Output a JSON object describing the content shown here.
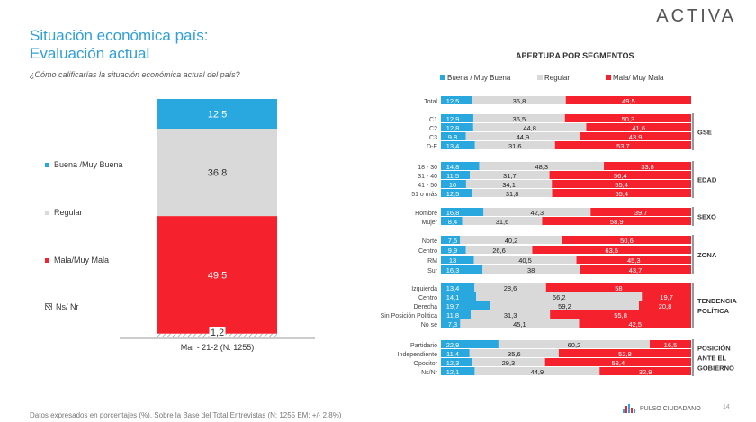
{
  "brand": "ACTIVA",
  "title": {
    "line1": "Situación económica país:",
    "line2": "Evaluación actual"
  },
  "question": "¿Cómo calificarías la situación económica actual del país?",
  "left_legend": [
    {
      "label": "Buena /Muy Buena",
      "color": "#29a8e0"
    },
    {
      "label": "Regular",
      "color": "#d9d9d9"
    },
    {
      "label": "Mala/Muy Mala",
      "color": "#f5222d"
    },
    {
      "label": "Ns/ Nr",
      "color": "hatch"
    }
  ],
  "segments_title": "APERTURA POR SEGMENTOS",
  "footnote": "Datos expresados en porcentajes (%). Sobre la Base del Total Entrevistas (N: 1255  EM: +/- 2,8%)",
  "logo_text": "PULSO CIUDADANO",
  "page_number": "14",
  "chart_data": [
    {
      "type": "bar",
      "stacked": true,
      "categories": [
        "Mar - 21-2 (N: 1255)"
      ],
      "series": [
        {
          "name": "Buena /Muy Buena",
          "values": [
            12.5
          ],
          "labels": [
            "12,5"
          ],
          "color": "#29a8e0"
        },
        {
          "name": "Regular",
          "values": [
            36.8
          ],
          "labels": [
            "36,8"
          ],
          "color": "#d9d9d9"
        },
        {
          "name": "Mala/Muy Mala",
          "values": [
            49.5
          ],
          "labels": [
            "49,5"
          ],
          "color": "#f5222d"
        },
        {
          "name": "Ns/ Nr",
          "values": [
            1.2
          ],
          "labels": [
            "1,2"
          ],
          "color": "hatch"
        }
      ],
      "ylim": [
        0,
        100
      ]
    },
    {
      "type": "bar",
      "orientation": "horizontal",
      "stacked": true,
      "title": "APERTURA POR SEGMENTOS",
      "legend_position": "top",
      "series_names": [
        "Buena / Muy Buena",
        "Regular",
        "Mala/ Muy Mala"
      ],
      "series_colors": [
        "#29a8e0",
        "#d9d9d9",
        "#f5222d"
      ],
      "groups": [
        {
          "label": [],
          "rows": [
            {
              "label": "Total",
              "values": [
                "12,5",
                "36,8",
                "49,5"
              ]
            }
          ]
        },
        {
          "label": [
            "GSE"
          ],
          "rows": [
            {
              "label": "C1",
              "values": [
                "12,9",
                "36,5",
                "50,3"
              ]
            },
            {
              "label": "C2",
              "values": [
                "12,8",
                "44,8",
                "41,6"
              ]
            },
            {
              "label": "C3",
              "values": [
                "9,8",
                "44,9",
                "43,9"
              ]
            },
            {
              "label": "D-E",
              "values": [
                "13,4",
                "31,6",
                "53,7"
              ]
            }
          ]
        },
        {
          "label": [
            "EDAD"
          ],
          "rows": [
            {
              "label": "18 - 30",
              "values": [
                "14,8",
                "48,3",
                "33,8"
              ]
            },
            {
              "label": "31 - 40",
              "values": [
                "11,5",
                "31,7",
                "56,4"
              ]
            },
            {
              "label": "41 - 50",
              "values": [
                "10",
                "34,1",
                "55,4"
              ]
            },
            {
              "label": "51 o más",
              "values": [
                "12,5",
                "31,8",
                "55,4"
              ]
            }
          ]
        },
        {
          "label": [
            "SEXO"
          ],
          "rows": [
            {
              "label": "Hombre",
              "values": [
                "16,8",
                "42,3",
                "39,7"
              ]
            },
            {
              "label": "Mujer",
              "values": [
                "8,4",
                "31,6",
                "58,9"
              ]
            }
          ]
        },
        {
          "label": [
            "ZONA"
          ],
          "rows": [
            {
              "label": "Norte",
              "values": [
                "7,5",
                "40,2",
                "50,6"
              ]
            },
            {
              "label": "Centro",
              "values": [
                "9,9",
                "26,6",
                "63,5"
              ]
            },
            {
              "label": "RM",
              "values": [
                "13",
                "40,5",
                "45,3"
              ]
            },
            {
              "label": "Sur",
              "values": [
                "16,3",
                "38",
                "43,7"
              ]
            }
          ]
        },
        {
          "label": [
            "TENDENCIA",
            "POLÍTICA"
          ],
          "rows": [
            {
              "label": "Izquierda",
              "values": [
                "13,4",
                "28,6",
                "58"
              ]
            },
            {
              "label": "Centro",
              "values": [
                "14,1",
                "66,2",
                "19,7"
              ]
            },
            {
              "label": "Derecha",
              "values": [
                "19,7",
                "59,2",
                "20,8"
              ]
            },
            {
              "label": "Sin Posición Política",
              "values": [
                "11,8",
                "31,3",
                "55,8"
              ]
            },
            {
              "label": "No sé",
              "values": [
                "7,3",
                "45,1",
                "42,5"
              ]
            }
          ]
        },
        {
          "label": [
            "POSICIÓN",
            "ANTE EL",
            "GOBIERNO"
          ],
          "rows": [
            {
              "label": "Partidario",
              "values": [
                "22,9",
                "60,2",
                "16,5"
              ]
            },
            {
              "label": "Independiente",
              "values": [
                "11,4",
                "35,6",
                "52,8"
              ]
            },
            {
              "label": "Opositor",
              "values": [
                "12,3",
                "29,3",
                "58,4"
              ]
            },
            {
              "label": "Ns/Nr",
              "values": [
                "12,1",
                "44,9",
                "32,9"
              ]
            }
          ]
        }
      ]
    }
  ]
}
